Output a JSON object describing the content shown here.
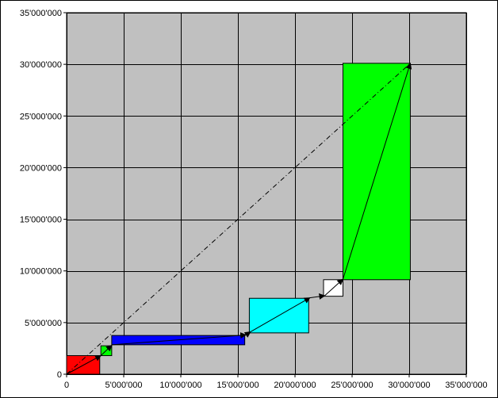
{
  "chart_data": {
    "type": "scatter",
    "title": "",
    "xlabel": "",
    "ylabel": "",
    "xlim": [
      0,
      35000000
    ],
    "ylim": [
      0,
      35000000
    ],
    "grid": true,
    "x_ticks": [
      0,
      5000000,
      10000000,
      15000000,
      20000000,
      25000000,
      30000000,
      35000000
    ],
    "y_ticks": [
      0,
      5000000,
      10000000,
      15000000,
      20000000,
      25000000,
      30000000,
      35000000
    ],
    "x_tick_labels": [
      "0",
      "5'000'000",
      "10'000'000",
      "15'000'000",
      "20'000'000",
      "25'000'000",
      "30'000'000",
      "35'000'000"
    ],
    "y_tick_labels": [
      "0",
      "5'000'000",
      "10'000'000",
      "15'000'000",
      "20'000'000",
      "25'000'000",
      "30'000'000",
      "35'000'000"
    ],
    "colors": {
      "plot_area": "#c0c0c0",
      "gridline": "#000000",
      "arrow": "#000000",
      "diagonal": "#000000"
    },
    "rectangles": [
      {
        "x0": 0,
        "x1": 2900000,
        "y0": 0,
        "y1": 1800000,
        "color": "#ff0000"
      },
      {
        "x0": 3000000,
        "x1": 3950000,
        "y0": 1800000,
        "y1": 2750000,
        "color": "#00ff00"
      },
      {
        "x0": 3950000,
        "x1": 15600000,
        "y0": 2850000,
        "y1": 3750000,
        "color": "#0000ff"
      },
      {
        "x0": 16000000,
        "x1": 21200000,
        "y0": 4000000,
        "y1": 7350000,
        "color": "#00ffff"
      },
      {
        "x0": 22500000,
        "x1": 24200000,
        "y0": 7550000,
        "y1": 9150000,
        "color": "#ffffff"
      },
      {
        "x0": 24200000,
        "x1": 30100000,
        "y0": 9150000,
        "y1": 30100000,
        "color": "#00ff00"
      }
    ],
    "arrows": [
      {
        "x0": 0,
        "y0": 0,
        "x1": 3000000,
        "y1": 1800000
      },
      {
        "x0": 3000000,
        "y0": 1800000,
        "x1": 3950000,
        "y1": 2800000
      },
      {
        "x0": 3950000,
        "y0": 2850000,
        "x1": 15700000,
        "y1": 3800000
      },
      {
        "x0": 15700000,
        "y0": 3800000,
        "x1": 16100000,
        "y1": 4100000
      },
      {
        "x0": 16100000,
        "y0": 4100000,
        "x1": 21300000,
        "y1": 7400000
      },
      {
        "x0": 21300000,
        "y0": 7400000,
        "x1": 22600000,
        "y1": 7600000
      },
      {
        "x0": 22600000,
        "y0": 7600000,
        "x1": 24200000,
        "y1": 9200000
      },
      {
        "x0": 24200000,
        "y0": 9200000,
        "x1": 30100000,
        "y1": 30100000
      }
    ],
    "diagonal": {
      "x0": 0,
      "y0": 0,
      "x1": 30100000,
      "y1": 30100000
    }
  }
}
